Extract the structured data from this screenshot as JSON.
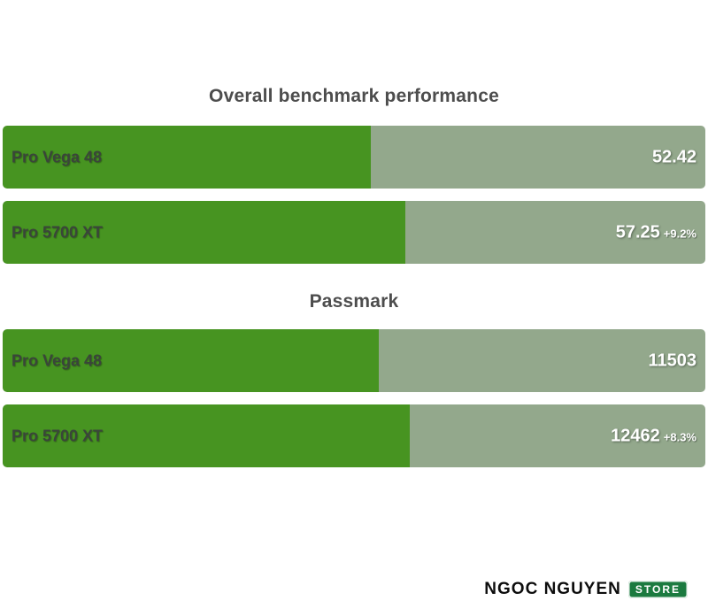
{
  "colors": {
    "background": "#ffffff",
    "bar_fill_green": "#479421",
    "bar_track_sage": "#93a88c",
    "title_text": "#4d4d4d",
    "category_label_text": "#3a453a",
    "value_text": "#ffffff",
    "footer_text": "#0d0d0d",
    "badge_background": "#1b7a3f",
    "badge_text": "#ffffff"
  },
  "chart_data": [
    {
      "type": "bar",
      "orientation": "horizontal",
      "title": "Overall benchmark performance",
      "categories": [
        "Pro Vega 48",
        "Pro 5700 XT"
      ],
      "values": [
        52.42,
        57.25
      ],
      "value_labels": [
        "52.42",
        "57.25"
      ],
      "delta_labels": [
        "",
        "+9.2%"
      ],
      "xlim": [
        0,
        100
      ],
      "grid": false,
      "legend": false
    },
    {
      "type": "bar",
      "orientation": "horizontal",
      "title": "Passmark",
      "categories": [
        "Pro Vega 48",
        "Pro 5700 XT"
      ],
      "values": [
        11503,
        12462
      ],
      "value_labels": [
        "11503",
        "12462"
      ],
      "delta_labels": [
        "",
        "+8.3%"
      ],
      "xlim": [
        0,
        21500
      ],
      "grid": false,
      "legend": false
    }
  ],
  "footer": {
    "brand": "NGOC NGUYEN",
    "badge": "STORE"
  }
}
